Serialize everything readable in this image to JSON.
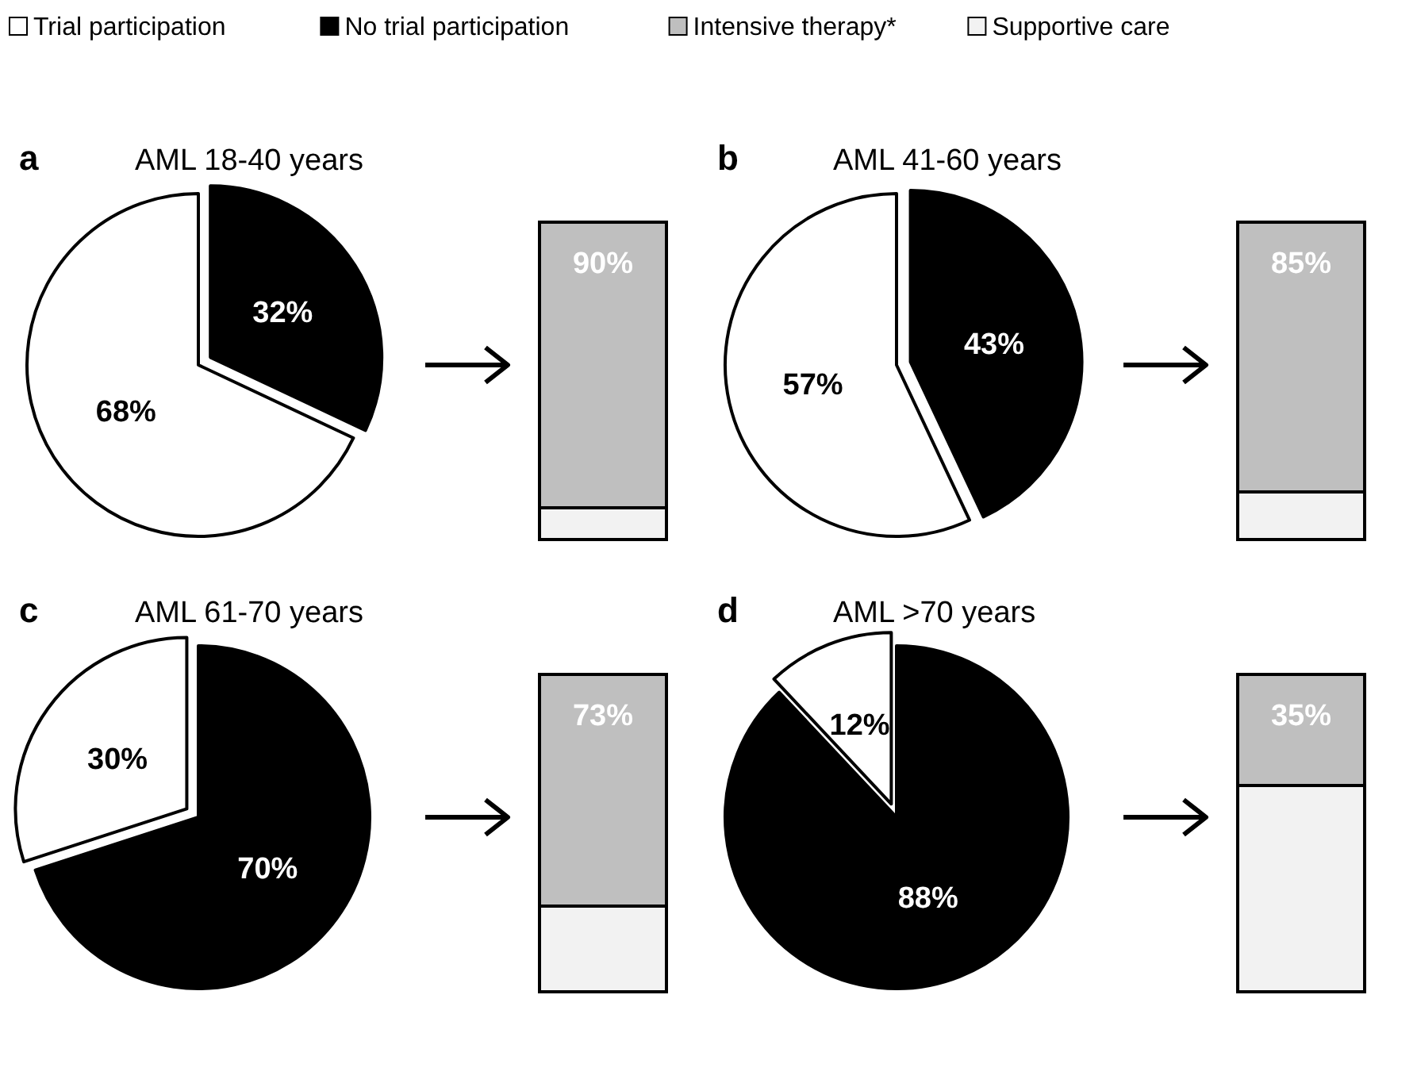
{
  "chart_data": [
    {
      "type": "pie",
      "title": "AML 18-40 years",
      "annotations": [
        "a"
      ],
      "categories": [
        "Trial participation",
        "No trial participation"
      ],
      "values": [
        68,
        32
      ],
      "colors": [
        "#ffffff",
        "#000000"
      ],
      "value_labels": [
        "68%",
        "32%"
      ],
      "legend": "top"
    },
    {
      "type": "bar",
      "categories": [
        null
      ],
      "stacked": true,
      "legend": "top",
      "series": [
        {
          "name": "Supportive care",
          "color": "#f2f2f2",
          "values": [
            10
          ]
        },
        {
          "name": "Intensive therapy*",
          "color": "#bfbfbf",
          "values": [
            90
          ],
          "value_labels": [
            "90%"
          ]
        }
      ]
    },
    {
      "type": "pie",
      "title": "AML 41-60 years",
      "annotations": [
        "b"
      ],
      "categories": [
        null,
        null
      ],
      "values": [
        57,
        43
      ],
      "colors": [
        "#ffffff",
        "#000000"
      ],
      "value_labels": [
        "57%",
        "43%"
      ]
    },
    {
      "type": "bar",
      "categories": [
        null
      ],
      "stacked": true,
      "series": [
        {
          "color": "#f2f2f2",
          "values": [
            15
          ]
        },
        {
          "color": "#bfbfbf",
          "values": [
            85
          ],
          "value_labels": [
            "85%"
          ]
        }
      ]
    },
    {
      "type": "pie",
      "title": "AML 61-70 years",
      "annotations": [
        "c"
      ],
      "categories": [
        null,
        null
      ],
      "values": [
        30,
        70
      ],
      "colors": [
        "#ffffff",
        "#000000"
      ],
      "value_labels": [
        "30%",
        "70%"
      ]
    },
    {
      "type": "bar",
      "categories": [
        null
      ],
      "stacked": true,
      "series": [
        {
          "color": "#f2f2f2",
          "values": [
            27
          ]
        },
        {
          "color": "#bfbfbf",
          "values": [
            73
          ],
          "value_labels": [
            "73%"
          ]
        }
      ]
    },
    {
      "type": "pie",
      "title": "AML >70 years",
      "annotations": [
        "d"
      ],
      "categories": [
        null,
        null
      ],
      "values": [
        12,
        88
      ],
      "colors": [
        "#ffffff",
        "#000000"
      ],
      "value_labels": [
        "12%",
        "88%"
      ]
    },
    {
      "type": "bar",
      "categories": [
        null
      ],
      "stacked": true,
      "series": [
        {
          "color": "#f2f2f2",
          "values": [
            65
          ]
        },
        {
          "color": "#bfbfbf",
          "values": [
            35
          ],
          "value_labels": [
            "35%"
          ]
        }
      ]
    }
  ]
}
